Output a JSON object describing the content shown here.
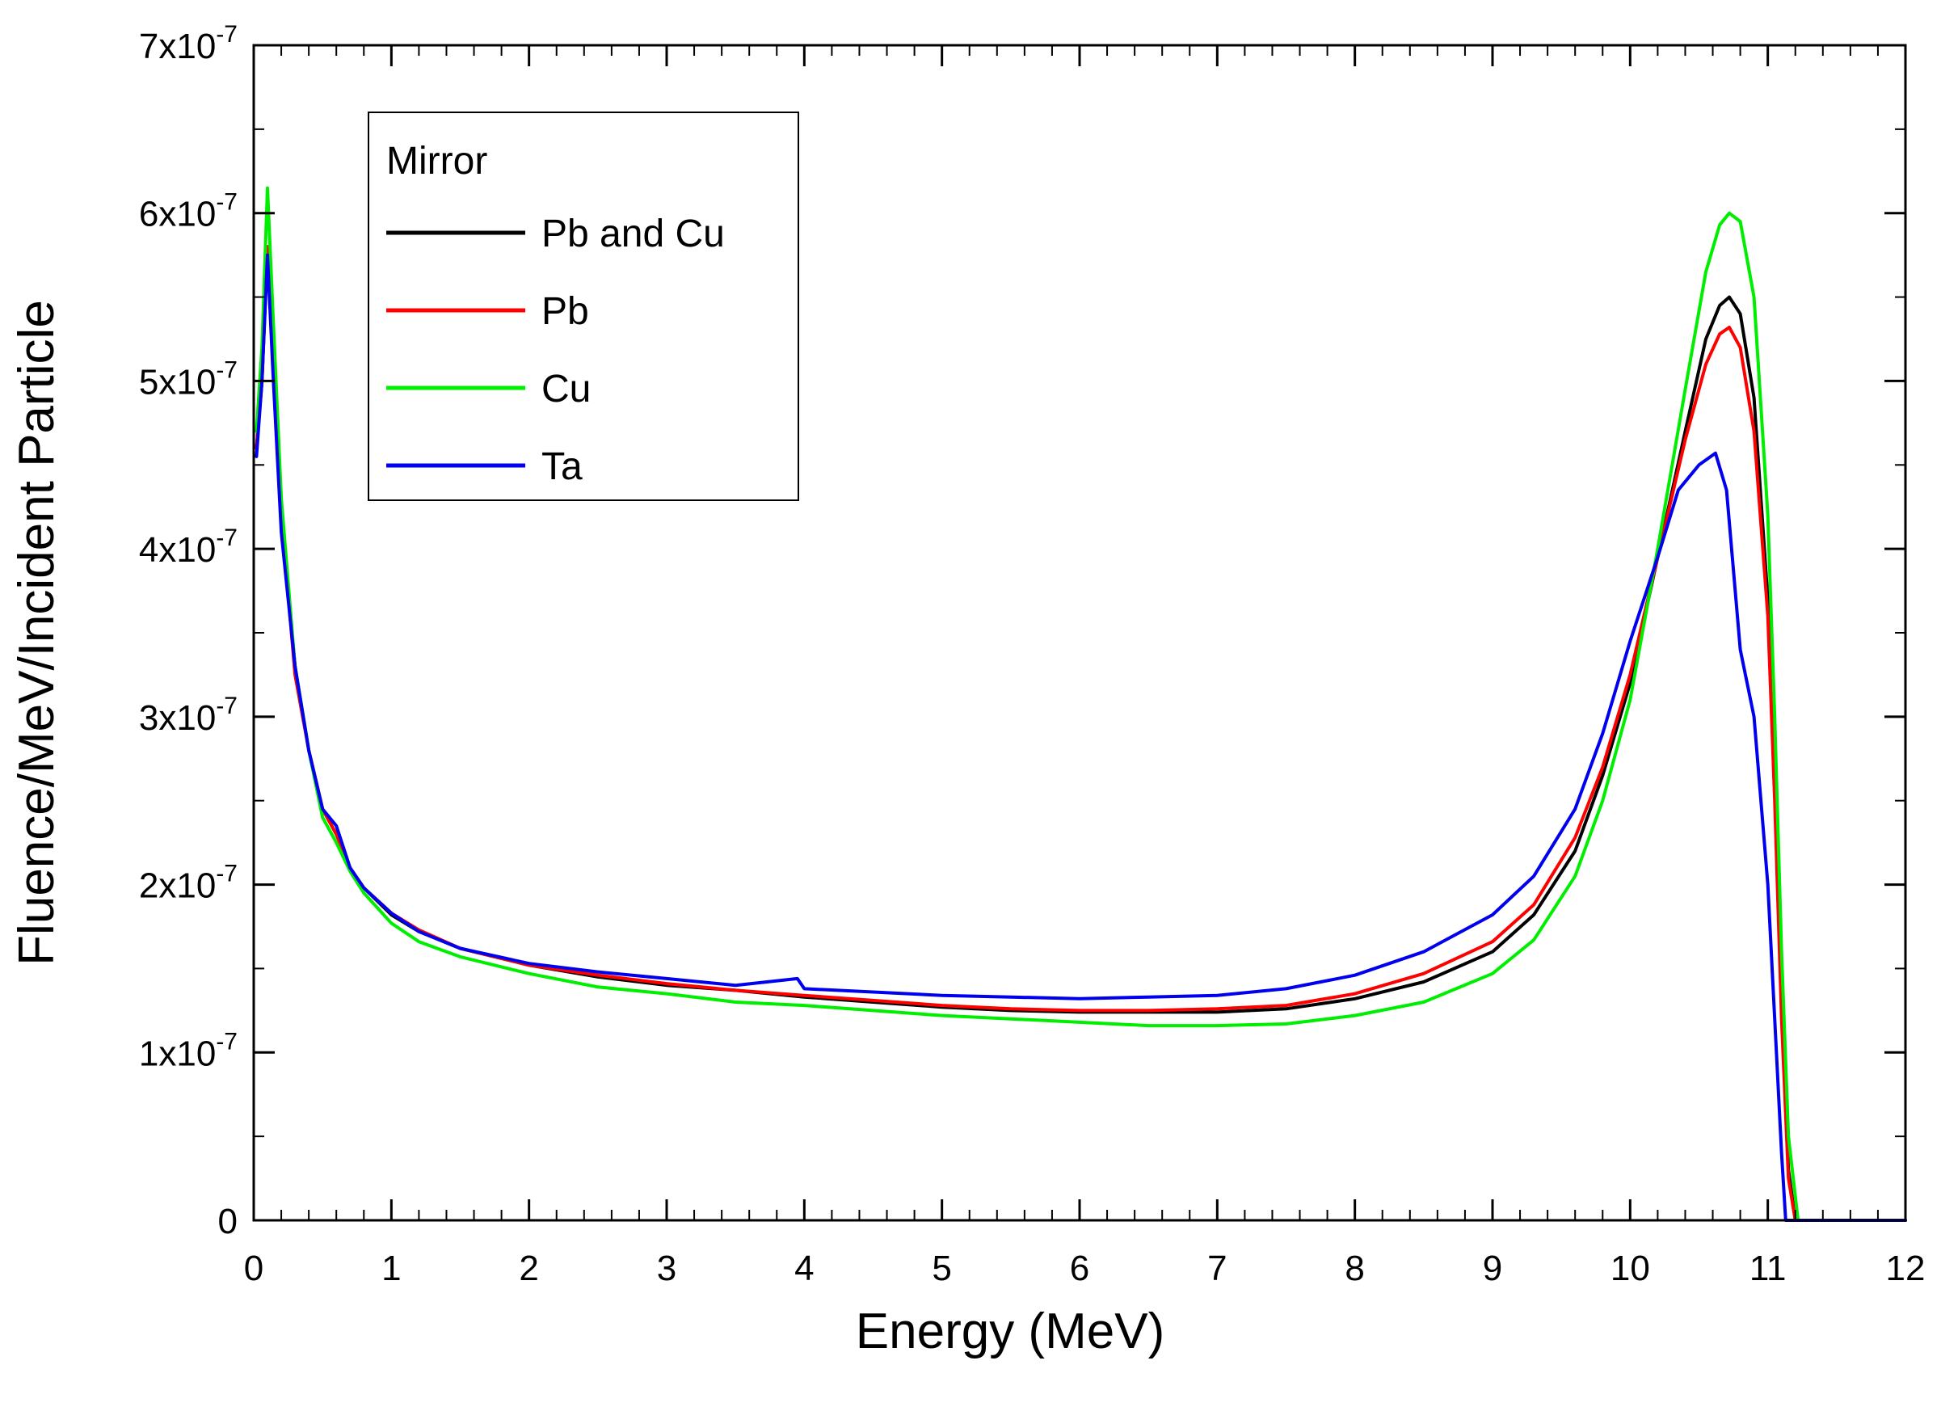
{
  "chart_data": {
    "type": "line",
    "title": "",
    "xlabel": "Energy (MeV)",
    "ylabel": "Fluence/MeV/Incident Particle",
    "xlim": [
      0,
      12
    ],
    "ylim": [
      0,
      7e-07
    ],
    "x_ticks": [
      {
        "value": 0,
        "label": "0"
      },
      {
        "value": 1,
        "label": "1"
      },
      {
        "value": 2,
        "label": "2"
      },
      {
        "value": 3,
        "label": "3"
      },
      {
        "value": 4,
        "label": "4"
      },
      {
        "value": 5,
        "label": "5"
      },
      {
        "value": 6,
        "label": "6"
      },
      {
        "value": 7,
        "label": "7"
      },
      {
        "value": 8,
        "label": "8"
      },
      {
        "value": 9,
        "label": "9"
      },
      {
        "value": 10,
        "label": "10"
      },
      {
        "value": 11,
        "label": "11"
      },
      {
        "value": 12,
        "label": "12"
      }
    ],
    "y_ticks": [
      {
        "value": 0,
        "base": "0",
        "exp": ""
      },
      {
        "value": 1e-07,
        "base": "1x10",
        "exp": "-7"
      },
      {
        "value": 2e-07,
        "base": "2x10",
        "exp": "-7"
      },
      {
        "value": 3e-07,
        "base": "3x10",
        "exp": "-7"
      },
      {
        "value": 4e-07,
        "base": "4x10",
        "exp": "-7"
      },
      {
        "value": 5e-07,
        "base": "5x10",
        "exp": "-7"
      },
      {
        "value": 6e-07,
        "base": "6x10",
        "exp": "-7"
      },
      {
        "value": 7e-07,
        "base": "7x10",
        "exp": "-7"
      }
    ],
    "legend": {
      "title": "Mirror",
      "position": "top-left"
    },
    "series": [
      {
        "name": "Pb and Cu",
        "color": "#000000",
        "points": [
          [
            0.02,
            4.6e-07
          ],
          [
            0.06,
            5e-07
          ],
          [
            0.1,
            5.8e-07
          ],
          [
            0.14,
            5.1e-07
          ],
          [
            0.2,
            4.2e-07
          ],
          [
            0.3,
            3.3e-07
          ],
          [
            0.4,
            2.8e-07
          ],
          [
            0.5,
            2.45e-07
          ],
          [
            0.6,
            2.3e-07
          ],
          [
            0.7,
            2.1e-07
          ],
          [
            0.8,
            1.98e-07
          ],
          [
            1.0,
            1.82e-07
          ],
          [
            1.2,
            1.72e-07
          ],
          [
            1.5,
            1.62e-07
          ],
          [
            2.0,
            1.52e-07
          ],
          [
            2.5,
            1.45e-07
          ],
          [
            3.0,
            1.4e-07
          ],
          [
            3.5,
            1.37e-07
          ],
          [
            4.0,
            1.33e-07
          ],
          [
            4.5,
            1.3e-07
          ],
          [
            5.0,
            1.27e-07
          ],
          [
            5.5,
            1.25e-07
          ],
          [
            6.0,
            1.24e-07
          ],
          [
            6.5,
            1.24e-07
          ],
          [
            7.0,
            1.24e-07
          ],
          [
            7.5,
            1.26e-07
          ],
          [
            8.0,
            1.32e-07
          ],
          [
            8.5,
            1.42e-07
          ],
          [
            9.0,
            1.6e-07
          ],
          [
            9.3,
            1.82e-07
          ],
          [
            9.6,
            2.2e-07
          ],
          [
            9.8,
            2.65e-07
          ],
          [
            10.0,
            3.2e-07
          ],
          [
            10.2,
            3.95e-07
          ],
          [
            10.4,
            4.7e-07
          ],
          [
            10.55,
            5.25e-07
          ],
          [
            10.65,
            5.45e-07
          ],
          [
            10.72,
            5.5e-07
          ],
          [
            10.8,
            5.4e-07
          ],
          [
            10.9,
            4.9e-07
          ],
          [
            11.0,
            3.7e-07
          ],
          [
            11.05,
            2.6e-07
          ],
          [
            11.1,
            1.3e-07
          ],
          [
            11.15,
            3e-08
          ],
          [
            11.2,
            0
          ],
          [
            12.0,
            0
          ]
        ]
      },
      {
        "name": "Pb",
        "color": "#ff0000",
        "points": [
          [
            0.02,
            4.6e-07
          ],
          [
            0.06,
            5e-07
          ],
          [
            0.1,
            5.8e-07
          ],
          [
            0.14,
            5.1e-07
          ],
          [
            0.2,
            4.2e-07
          ],
          [
            0.3,
            3.25e-07
          ],
          [
            0.4,
            2.8e-07
          ],
          [
            0.5,
            2.45e-07
          ],
          [
            0.6,
            2.3e-07
          ],
          [
            0.7,
            2.1e-07
          ],
          [
            0.8,
            1.98e-07
          ],
          [
            1.0,
            1.83e-07
          ],
          [
            1.2,
            1.73e-07
          ],
          [
            1.5,
            1.62e-07
          ],
          [
            2.0,
            1.52e-07
          ],
          [
            2.5,
            1.46e-07
          ],
          [
            3.0,
            1.41e-07
          ],
          [
            3.5,
            1.37e-07
          ],
          [
            4.0,
            1.34e-07
          ],
          [
            4.5,
            1.31e-07
          ],
          [
            5.0,
            1.28e-07
          ],
          [
            5.5,
            1.26e-07
          ],
          [
            6.0,
            1.25e-07
          ],
          [
            6.5,
            1.25e-07
          ],
          [
            7.0,
            1.26e-07
          ],
          [
            7.5,
            1.28e-07
          ],
          [
            8.0,
            1.35e-07
          ],
          [
            8.5,
            1.47e-07
          ],
          [
            9.0,
            1.66e-07
          ],
          [
            9.3,
            1.88e-07
          ],
          [
            9.6,
            2.28e-07
          ],
          [
            9.8,
            2.7e-07
          ],
          [
            10.0,
            3.25e-07
          ],
          [
            10.2,
            3.95e-07
          ],
          [
            10.4,
            4.65e-07
          ],
          [
            10.55,
            5.1e-07
          ],
          [
            10.65,
            5.28e-07
          ],
          [
            10.72,
            5.32e-07
          ],
          [
            10.8,
            5.2e-07
          ],
          [
            10.9,
            4.7e-07
          ],
          [
            11.0,
            3.6e-07
          ],
          [
            11.05,
            2.5e-07
          ],
          [
            11.1,
            1.2e-07
          ],
          [
            11.15,
            2.5e-08
          ],
          [
            11.2,
            0
          ],
          [
            12.0,
            0
          ]
        ]
      },
      {
        "name": "Cu",
        "color": "#00ee00",
        "points": [
          [
            0.02,
            4.7e-07
          ],
          [
            0.06,
            5.2e-07
          ],
          [
            0.1,
            6.15e-07
          ],
          [
            0.14,
            5.4e-07
          ],
          [
            0.2,
            4.3e-07
          ],
          [
            0.3,
            3.3e-07
          ],
          [
            0.4,
            2.8e-07
          ],
          [
            0.5,
            2.4e-07
          ],
          [
            0.6,
            2.25e-07
          ],
          [
            0.7,
            2.08e-07
          ],
          [
            0.8,
            1.95e-07
          ],
          [
            1.0,
            1.77e-07
          ],
          [
            1.2,
            1.66e-07
          ],
          [
            1.5,
            1.57e-07
          ],
          [
            2.0,
            1.47e-07
          ],
          [
            2.5,
            1.39e-07
          ],
          [
            3.0,
            1.35e-07
          ],
          [
            3.5,
            1.3e-07
          ],
          [
            4.0,
            1.28e-07
          ],
          [
            4.5,
            1.25e-07
          ],
          [
            5.0,
            1.22e-07
          ],
          [
            5.5,
            1.2e-07
          ],
          [
            6.0,
            1.18e-07
          ],
          [
            6.5,
            1.16e-07
          ],
          [
            7.0,
            1.16e-07
          ],
          [
            7.5,
            1.17e-07
          ],
          [
            8.0,
            1.22e-07
          ],
          [
            8.5,
            1.3e-07
          ],
          [
            9.0,
            1.47e-07
          ],
          [
            9.3,
            1.67e-07
          ],
          [
            9.6,
            2.05e-07
          ],
          [
            9.8,
            2.5e-07
          ],
          [
            10.0,
            3.1e-07
          ],
          [
            10.2,
            4e-07
          ],
          [
            10.4,
            4.95e-07
          ],
          [
            10.55,
            5.65e-07
          ],
          [
            10.65,
            5.93e-07
          ],
          [
            10.72,
            6e-07
          ],
          [
            10.8,
            5.95e-07
          ],
          [
            10.9,
            5.5e-07
          ],
          [
            11.0,
            4.2e-07
          ],
          [
            11.05,
            3e-07
          ],
          [
            11.1,
            1.6e-07
          ],
          [
            11.15,
            5e-08
          ],
          [
            11.22,
            0
          ],
          [
            12.0,
            0
          ]
        ]
      },
      {
        "name": "Ta",
        "color": "#0000ee",
        "points": [
          [
            0.02,
            4.55e-07
          ],
          [
            0.06,
            5e-07
          ],
          [
            0.1,
            5.75e-07
          ],
          [
            0.14,
            5.05e-07
          ],
          [
            0.2,
            4.1e-07
          ],
          [
            0.3,
            3.3e-07
          ],
          [
            0.4,
            2.8e-07
          ],
          [
            0.5,
            2.45e-07
          ],
          [
            0.6,
            2.35e-07
          ],
          [
            0.7,
            2.1e-07
          ],
          [
            0.8,
            1.98e-07
          ],
          [
            1.0,
            1.83e-07
          ],
          [
            1.2,
            1.72e-07
          ],
          [
            1.5,
            1.62e-07
          ],
          [
            2.0,
            1.53e-07
          ],
          [
            2.5,
            1.48e-07
          ],
          [
            3.0,
            1.44e-07
          ],
          [
            3.5,
            1.4e-07
          ],
          [
            3.95,
            1.44e-07
          ],
          [
            4.0,
            1.38e-07
          ],
          [
            4.5,
            1.36e-07
          ],
          [
            5.0,
            1.34e-07
          ],
          [
            5.5,
            1.33e-07
          ],
          [
            6.0,
            1.32e-07
          ],
          [
            6.5,
            1.33e-07
          ],
          [
            7.0,
            1.34e-07
          ],
          [
            7.5,
            1.38e-07
          ],
          [
            8.0,
            1.46e-07
          ],
          [
            8.5,
            1.6e-07
          ],
          [
            9.0,
            1.82e-07
          ],
          [
            9.3,
            2.05e-07
          ],
          [
            9.6,
            2.45e-07
          ],
          [
            9.8,
            2.9e-07
          ],
          [
            10.0,
            3.45e-07
          ],
          [
            10.2,
            3.95e-07
          ],
          [
            10.35,
            4.35e-07
          ],
          [
            10.5,
            4.5e-07
          ],
          [
            10.62,
            4.57e-07
          ],
          [
            10.7,
            4.35e-07
          ],
          [
            10.8,
            3.4e-07
          ],
          [
            10.9,
            3e-07
          ],
          [
            11.0,
            2e-07
          ],
          [
            11.05,
            1.2e-07
          ],
          [
            11.1,
            4e-08
          ],
          [
            11.13,
            0
          ],
          [
            12.0,
            0
          ]
        ]
      }
    ]
  }
}
